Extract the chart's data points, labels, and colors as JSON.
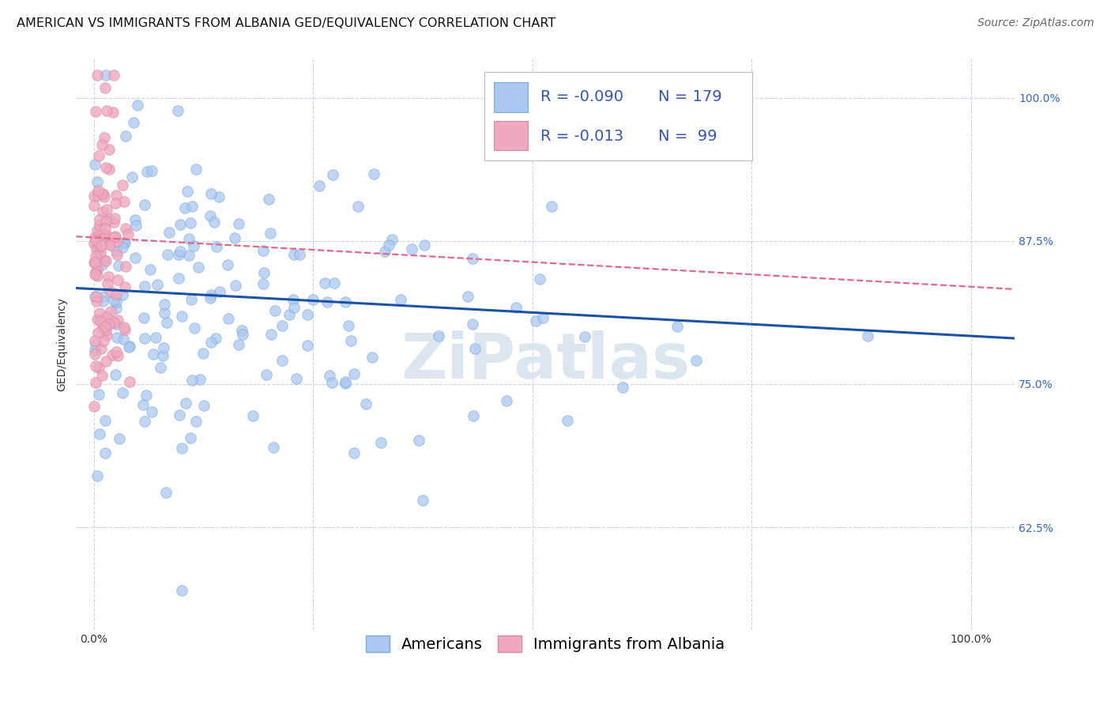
{
  "title": "AMERICAN VS IMMIGRANTS FROM ALBANIA GED/EQUIVALENCY CORRELATION CHART",
  "source": "Source: ZipAtlas.com",
  "ylabel": "GED/Equivalency",
  "watermark": "ZiPatlas",
  "xlim": [
    -0.02,
    1.05
  ],
  "ylim": [
    0.535,
    1.035
  ],
  "american_color": "#aac8f0",
  "american_edge": "#7aaad8",
  "albania_color": "#f0a8be",
  "albania_edge": "#d888a8",
  "trendline_american_color": "#1a52a8",
  "trendline_albania_color": "#e06888",
  "legend_r_american": "-0.090",
  "legend_n_american": "179",
  "legend_r_albania": "-0.013",
  "legend_n_albania": " 99",
  "R_american": -0.09,
  "N_american": 179,
  "R_albania": -0.013,
  "N_albania": 99,
  "title_fontsize": 11.5,
  "axis_label_fontsize": 10,
  "tick_fontsize": 10,
  "legend_fontsize": 14,
  "source_fontsize": 10,
  "background_color": "#ffffff",
  "grid_color": "#c8d4e8",
  "marker_size": 95,
  "watermark_color": "#d8e4f0",
  "watermark_alpha": 0.9
}
